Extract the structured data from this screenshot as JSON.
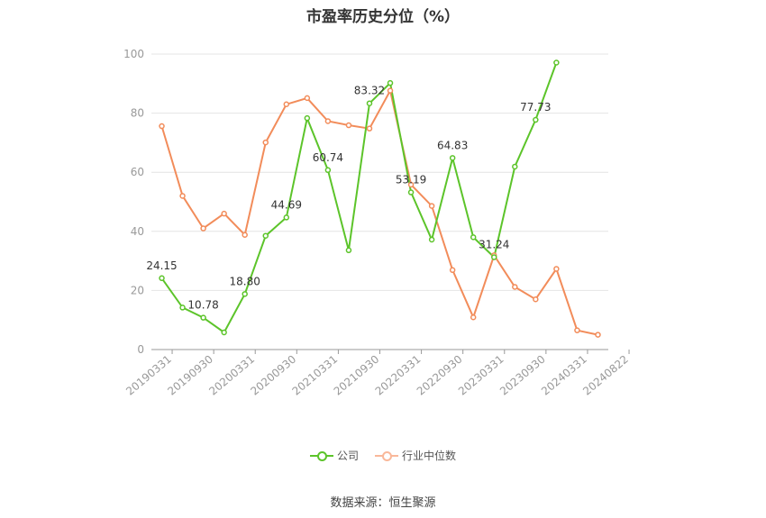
{
  "chart_data": {
    "type": "line",
    "title": "市盈率历史分位（%）",
    "xlabel": "",
    "ylabel": "",
    "ylim": [
      0,
      100
    ],
    "yticks": [
      0,
      20,
      40,
      60,
      80,
      100
    ],
    "grid": true,
    "legend_position": "bottom",
    "x_tick_labels": [
      "20190331",
      "20190930",
      "20200331",
      "20200930",
      "20210331",
      "20210930",
      "20220331",
      "20220930",
      "20230331",
      "20230930",
      "20240331",
      "20240822"
    ],
    "series": [
      {
        "name": "公司",
        "color": "#5cc42a",
        "values": [
          24.15,
          14.2,
          10.78,
          5.8,
          18.8,
          38.5,
          44.69,
          78.3,
          60.74,
          33.6,
          83.32,
          90.2,
          53.19,
          37.2,
          64.83,
          38.0,
          31.24,
          61.9,
          77.73,
          97.1,
          null,
          null
        ],
        "labels": [
          "24.15",
          null,
          "10.78",
          null,
          "18.80",
          null,
          "44.69",
          null,
          "60.74",
          null,
          "83.32",
          null,
          "53.19",
          null,
          "64.83",
          null,
          "31.24",
          null,
          "77.73",
          null,
          null,
          null
        ]
      },
      {
        "name": "行业中位数",
        "color": "#f28c5a",
        "values": [
          75.6,
          52.0,
          41.0,
          46.0,
          38.8,
          70.1,
          83.0,
          85.1,
          77.3,
          75.9,
          74.8,
          87.6,
          55.8,
          48.6,
          26.9,
          10.9,
          31.9,
          21.2,
          17.0,
          27.3,
          6.5,
          5.0
        ]
      }
    ]
  },
  "legend": {
    "company": "公司",
    "industry": "行业中位数"
  },
  "source": "数据来源：恒生聚源"
}
